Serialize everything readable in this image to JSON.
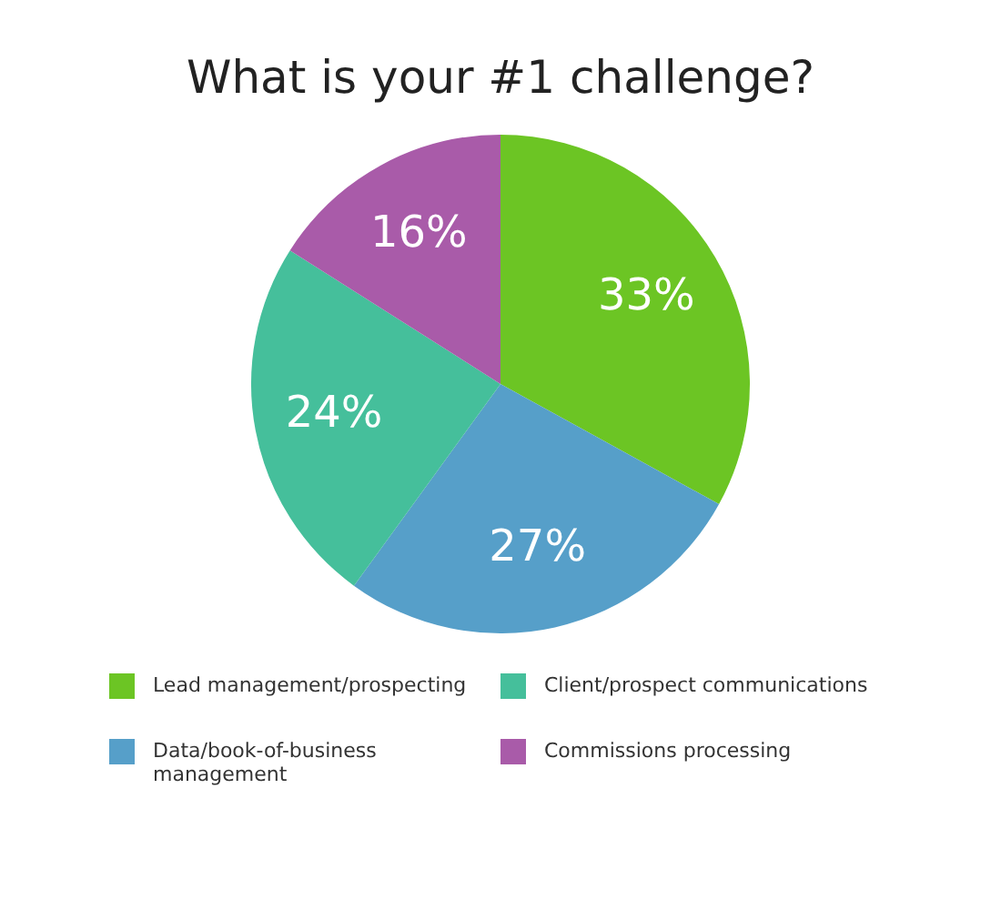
{
  "chart_data": {
    "type": "pie",
    "title": "What is your #1 challenge?",
    "categories": [
      "Lead management/prospecting",
      "Data/book-of-business management",
      "Client/prospect communications",
      "Commissions processing"
    ],
    "values": [
      33,
      27,
      24,
      16
    ],
    "colors": [
      "#6cc524",
      "#569fc9",
      "#45bf9b",
      "#a95ba9"
    ],
    "value_labels": [
      "33%",
      "27%",
      "24%",
      "16%"
    ],
    "legend": "bottom"
  }
}
